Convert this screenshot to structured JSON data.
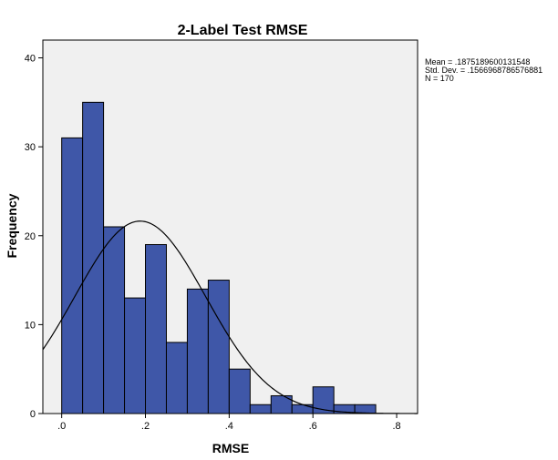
{
  "chart_data": {
    "type": "histogram",
    "title": "2-Label Test RMSE",
    "xlabel": "RMSE",
    "ylabel": "Frequency",
    "xlim": [
      -0.045,
      0.85
    ],
    "ylim": [
      0,
      42
    ],
    "x_ticks": [
      0,
      0.2,
      0.4,
      0.6,
      0.8
    ],
    "x_tick_labels": [
      ".0",
      ".2",
      ".4",
      ".6",
      ".8"
    ],
    "y_ticks": [
      0,
      10,
      20,
      30,
      40
    ],
    "y_tick_labels": [
      "0",
      "10",
      "20",
      "30",
      "40"
    ],
    "bin_width": 0.05,
    "bins": [
      {
        "start": 0.0,
        "end": 0.05,
        "count": 31
      },
      {
        "start": 0.05,
        "end": 0.1,
        "count": 35
      },
      {
        "start": 0.1,
        "end": 0.15,
        "count": 21
      },
      {
        "start": 0.15,
        "end": 0.2,
        "count": 13
      },
      {
        "start": 0.2,
        "end": 0.25,
        "count": 19
      },
      {
        "start": 0.25,
        "end": 0.3,
        "count": 8
      },
      {
        "start": 0.3,
        "end": 0.35,
        "count": 14
      },
      {
        "start": 0.35,
        "end": 0.4,
        "count": 15
      },
      {
        "start": 0.4,
        "end": 0.45,
        "count": 5
      },
      {
        "start": 0.45,
        "end": 0.5,
        "count": 1
      },
      {
        "start": 0.5,
        "end": 0.55,
        "count": 2
      },
      {
        "start": 0.55,
        "end": 0.6,
        "count": 1
      },
      {
        "start": 0.6,
        "end": 0.65,
        "count": 3
      },
      {
        "start": 0.65,
        "end": 0.7,
        "count": 1
      },
      {
        "start": 0.7,
        "end": 0.75,
        "count": 1
      }
    ],
    "normal_curve": {
      "mean": 0.1875189600131548,
      "std_dev": 0.1566968786576881,
      "n": 170
    },
    "bar_color": "#3f57a8",
    "bar_edge_color": "#000000",
    "plot_background": "#f0f0f0",
    "grid": false,
    "stats_text": [
      "Mean = .1875189600131548",
      "Std. Dev. = .1566968786576881",
      "N = 170"
    ]
  }
}
